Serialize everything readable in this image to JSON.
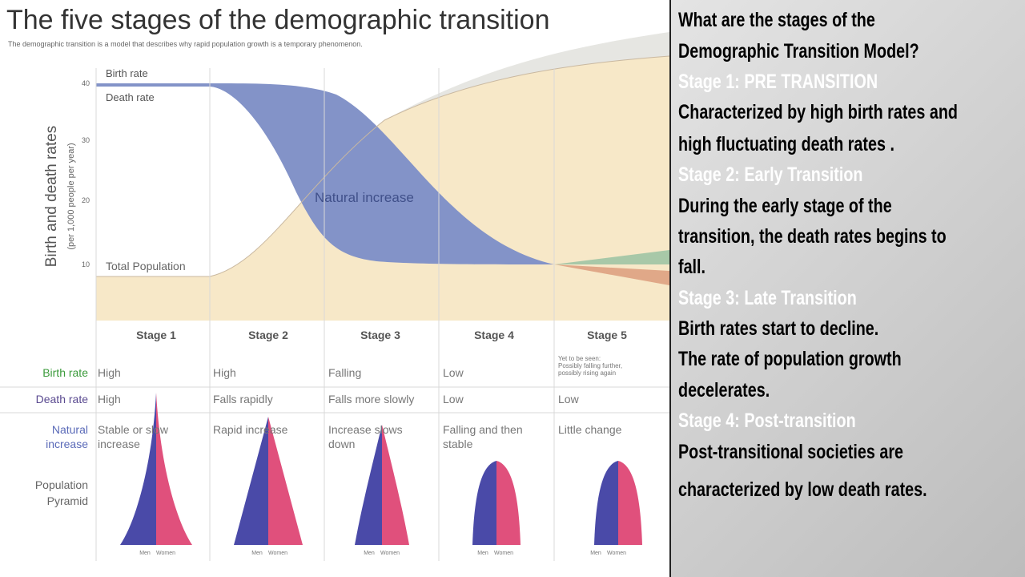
{
  "figure": {
    "title": "The five stages of the demographic transition",
    "subtitle": "The demographic transition is a model that describes why rapid population growth is a temporary phenomenon.",
    "y_axis_label": "Birth and death rates",
    "y_axis_sublabel": "(per 1,000 people per year)",
    "y_ticks": [
      40,
      30,
      20,
      10
    ],
    "curve_labels": {
      "birth_rate": "Birth rate",
      "death_rate": "Death rate",
      "natural_increase": "Natural increase",
      "total_population": "Total Population"
    },
    "stages": [
      "Stage 1",
      "Stage 2",
      "Stage 3",
      "Stage 4",
      "Stage 5"
    ],
    "table": [
      {
        "label": [
          "Birth rate"
        ],
        "color": "#3a9a3a",
        "cells": [
          [
            "High"
          ],
          [
            "High"
          ],
          [
            "Falling"
          ],
          [
            "Low"
          ],
          [
            "Yet to be seen:",
            "Possibly falling further,",
            "possibly rising again"
          ]
        ]
      },
      {
        "label": [
          "Death rate"
        ],
        "color": "#5a4a90",
        "cells": [
          [
            "High"
          ],
          [
            "Falls rapidly"
          ],
          [
            "Falls more slowly"
          ],
          [
            "Low"
          ],
          [
            "Low"
          ]
        ]
      },
      {
        "label": [
          "Natural",
          "increase"
        ],
        "color": "#5a6ab8",
        "cells": [
          [
            "Stable or slow",
            "increase"
          ],
          [
            "Rapid increase"
          ],
          [
            "Increase slows",
            "down"
          ],
          [
            "Falling and then",
            "stable"
          ],
          [
            "Little change"
          ]
        ]
      }
    ],
    "pyramid_label": [
      "Population",
      "Pyramid"
    ],
    "pyramid_legend": [
      "Men",
      "Women"
    ]
  },
  "panel": {
    "lines": [
      {
        "text": "What are the stages of the",
        "color": "#000000"
      },
      {
        "text": "Demographic Transition Model?",
        "color": "#000000"
      },
      {
        "text": "Stage 1: PRE TRANSITION",
        "color": "#ffffff"
      },
      {
        "text": "Characterized by high birth rates and",
        "color": "#000000"
      },
      {
        "text": "high fluctuating death rates .",
        "color": "#000000"
      },
      {
        "text": "Stage 2: Early Transition",
        "color": "#ffffff"
      },
      {
        "text": "During the early stage of the",
        "color": "#000000"
      },
      {
        "text": "transition, the death rates begins to",
        "color": "#000000"
      },
      {
        "text": "fall.",
        "color": "#000000"
      },
      {
        "text": "Stage 3: Late Transition",
        "color": "#ffffff"
      },
      {
        "text": "Birth rates start to decline.",
        "color": "#000000"
      },
      {
        "text": "The rate of population growth",
        "color": "#000000"
      },
      {
        "text": "decelerates.",
        "color": "#000000"
      },
      {
        "text": "Stage 4: Post-transition",
        "color": "#ffffff"
      },
      {
        "text": "Post-transitional societies are",
        "color": "#000000"
      },
      {
        "text": "characterized by low death rates.",
        "color": "#000000"
      }
    ]
  }
}
